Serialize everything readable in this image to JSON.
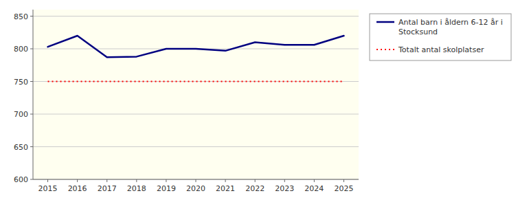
{
  "chart_data": {
    "type": "line",
    "x": [
      2015,
      2016,
      2017,
      2018,
      2019,
      2020,
      2021,
      2022,
      2023,
      2024,
      2025
    ],
    "series": [
      {
        "name": "Antal barn i åldern 6-12 år i\nStocksund",
        "color": "#000080",
        "line_style": "solid",
        "values": [
          803,
          820,
          787,
          788,
          800,
          800,
          797,
          810,
          806,
          806,
          820
        ]
      },
      {
        "name": "Totalt antal skolplatser",
        "color": "#FF0000",
        "line_style": "dotted",
        "x": [
          2015,
          2025
        ],
        "values": [
          750,
          750
        ]
      }
    ],
    "xlim": [
      2014.5,
      2025.5
    ],
    "xticks": [
      2015,
      2016,
      2017,
      2018,
      2019,
      2020,
      2021,
      2022,
      2023,
      2024,
      2025
    ],
    "ylim": [
      600,
      860
    ],
    "yticks": [
      600,
      650,
      700,
      750,
      800,
      850
    ],
    "grid": "y",
    "legend": "right"
  }
}
